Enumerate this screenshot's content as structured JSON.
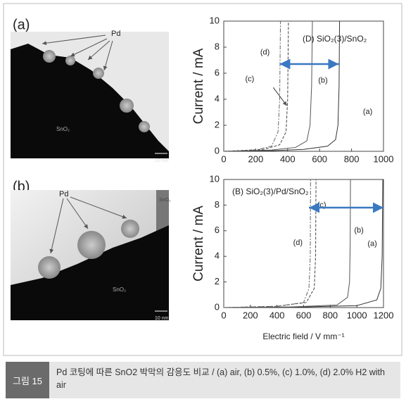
{
  "figure": {
    "panels": [
      {
        "label": "(a)",
        "image_texts": [
          "Pd",
          "SnO₂",
          "10 nm"
        ]
      },
      {
        "label": "(b)",
        "image_texts": [
          "Pd",
          "SnO₂",
          "SnO₂",
          "10 nm"
        ]
      }
    ]
  },
  "chart_data": [
    {
      "type": "line",
      "annotation": "(D) SiO₂(3)/SnO₂",
      "y_label": "Current / mA",
      "xlim": [
        0,
        1000
      ],
      "ylim": [
        0,
        10
      ],
      "xticks": [
        0,
        200,
        400,
        600,
        800,
        1000
      ],
      "yticks": [
        0,
        2,
        4,
        6,
        8,
        10
      ],
      "arrow": {
        "x": [
          350,
          720
        ],
        "y": 6.7,
        "color": "#3a78c2"
      },
      "series": [
        {
          "name": "(a)",
          "color": "#333333",
          "x": [
            0,
            300,
            500,
            650,
            700,
            715,
            722,
            725
          ],
          "values": [
            0,
            0.05,
            0.15,
            0.4,
            0.9,
            2,
            5,
            10
          ]
        },
        {
          "name": "(b)",
          "color": "#555555",
          "x": [
            0,
            300,
            450,
            520,
            540,
            550,
            555
          ],
          "values": [
            0,
            0.1,
            0.3,
            0.8,
            2,
            5,
            10
          ]
        },
        {
          "name": "(c)",
          "color": "#444444",
          "x": [
            0,
            250,
            350,
            390,
            400,
            405
          ],
          "values": [
            0,
            0.15,
            0.5,
            1.5,
            4,
            10
          ]
        },
        {
          "name": "(d)",
          "color": "#666666",
          "x": [
            0,
            200,
            300,
            340,
            350,
            355
          ],
          "values": [
            0,
            0.1,
            0.4,
            1.5,
            4,
            10
          ]
        }
      ]
    },
    {
      "type": "line",
      "annotation": "(B) SiO₂(3)/Pd/SnO₂",
      "y_label": "Current / mA",
      "x_label": "Electric field / V mm⁻¹",
      "xlim": [
        0,
        1200
      ],
      "ylim": [
        0,
        10
      ],
      "xticks": [
        0,
        200,
        400,
        600,
        800,
        1000,
        1200
      ],
      "yticks": [
        0,
        2,
        4,
        6,
        8,
        10
      ],
      "arrow": {
        "x": [
          640,
          1200
        ],
        "y": 7.8,
        "color": "#3a78c2"
      },
      "series": [
        {
          "name": "(a)",
          "color": "#333333",
          "x": [
            0,
            600,
            1000,
            1150,
            1180,
            1190,
            1195
          ],
          "values": [
            0,
            0.05,
            0.15,
            0.6,
            1.5,
            4,
            10
          ]
        },
        {
          "name": "(b)",
          "color": "#555555",
          "x": [
            0,
            500,
            850,
            930,
            945,
            950,
            952
          ],
          "values": [
            0,
            0.05,
            0.2,
            0.8,
            2,
            5,
            10
          ]
        },
        {
          "name": "(c)",
          "color": "#444444",
          "x": [
            0,
            400,
            620,
            680,
            690,
            693
          ],
          "values": [
            0,
            0.1,
            0.4,
            1.5,
            4,
            10
          ]
        },
        {
          "name": "(d)",
          "color": "#666666",
          "x": [
            0,
            400,
            600,
            640,
            650,
            652
          ],
          "values": [
            0,
            0.1,
            0.4,
            1.5,
            4,
            10
          ]
        }
      ]
    }
  ],
  "caption": {
    "label": "그림 15",
    "text": "Pd 코팅에 따른 SnO2 박막의 감응도 비교 / (a) air, (b) 0.5%, (c) 1.0%, (d) 2.0% H2 with air"
  }
}
